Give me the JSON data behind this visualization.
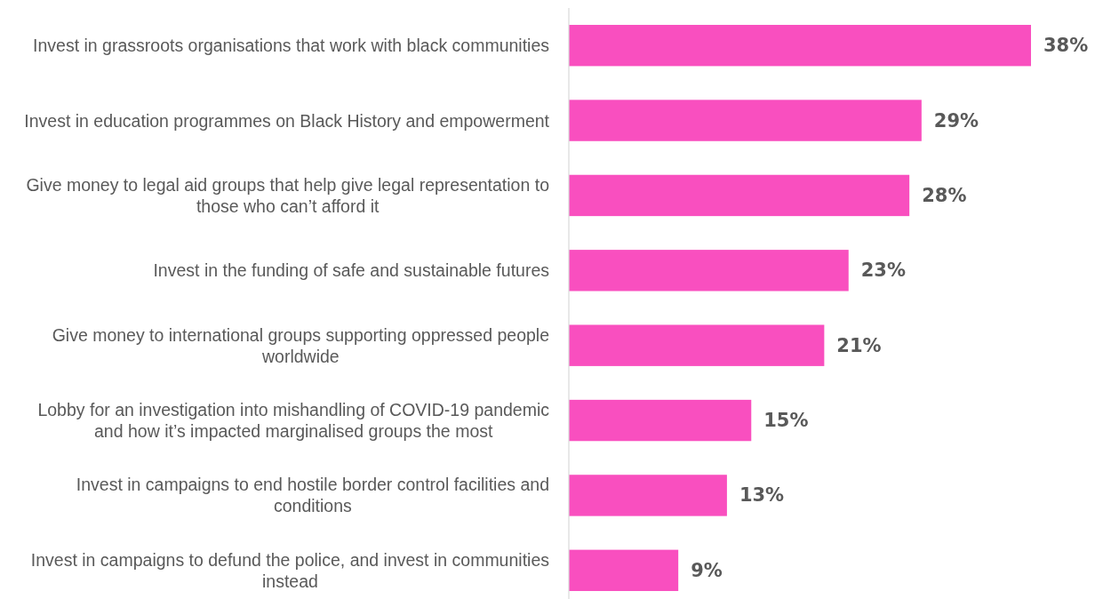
{
  "chart_data": {
    "type": "bar",
    "orientation": "horizontal",
    "color": "#f94fbf",
    "categories": [
      "Invest in grassroots organisations that work with black communities",
      "Invest in education programmes on Black History and empowerment",
      "Give money to legal aid groups that help give legal representation to those who can’t afford it",
      "Invest in the funding of safe and sustainable futures",
      "Give money to international groups supporting oppressed people worldwide",
      "Lobby for an investigation into mishandling of COVID-19 pandemic and how it’s impacted marginalised groups the most",
      "Invest in campaigns to end hostile border control facilities and conditions",
      "Invest in campaigns to defund the police, and invest in communities instead"
    ],
    "values": [
      38,
      29,
      28,
      23,
      21,
      15,
      13,
      9
    ],
    "value_labels": [
      "38%",
      "29%",
      "28%",
      "23%",
      "21%",
      "15%",
      "13%",
      "9%"
    ]
  }
}
